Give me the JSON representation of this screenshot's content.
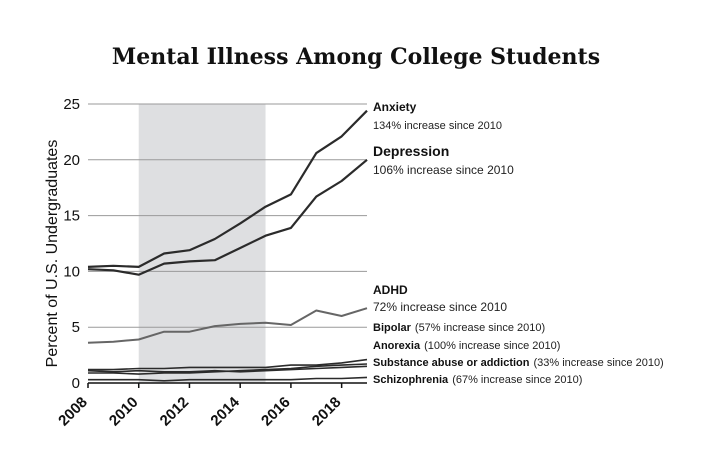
{
  "chart_data": {
    "type": "line",
    "title": "Mental Illness Among College Students",
    "ylabel": "Percent of U.S. Undergraduates",
    "xlim": [
      2008,
      2019
    ],
    "ylim": [
      0,
      25
    ],
    "yticks": [
      "0",
      "5",
      "10",
      "15",
      "20",
      "25"
    ],
    "xticks": [
      "2008",
      "2010",
      "2012",
      "2014",
      "2016",
      "2018"
    ],
    "shaded_range": [
      2010,
      2015
    ],
    "colors": {
      "line": "#2b2b2b",
      "line_light": "#666666",
      "shade": "#dedfe1"
    },
    "series": [
      {
        "name": "Anxiety",
        "annotation": "134% increase since 2010",
        "x": [
          2008,
          2009,
          2010,
          2011,
          2012,
          2013,
          2014,
          2015,
          2016,
          2017,
          2018,
          2019
        ],
        "values": [
          10.4,
          10.5,
          10.4,
          11.6,
          11.9,
          12.9,
          14.3,
          15.8,
          16.9,
          20.6,
          22.1,
          24.4
        ]
      },
      {
        "name": "Depression",
        "annotation": "106% increase since 2010",
        "x": [
          2008,
          2009,
          2010,
          2011,
          2012,
          2013,
          2014,
          2015,
          2016,
          2017,
          2018,
          2019
        ],
        "values": [
          10.2,
          10.1,
          9.7,
          10.7,
          10.9,
          11.0,
          12.1,
          13.2,
          13.9,
          16.7,
          18.1,
          20.0
        ]
      },
      {
        "name": "ADHD",
        "annotation": "72% increase since 2010",
        "x": [
          2008,
          2009,
          2010,
          2011,
          2012,
          2013,
          2014,
          2015,
          2016,
          2017,
          2018,
          2019
        ],
        "values": [
          3.6,
          3.7,
          3.9,
          4.6,
          4.6,
          5.1,
          5.3,
          5.4,
          5.2,
          6.5,
          6.0,
          6.7
        ]
      },
      {
        "name": "Bipolar",
        "annotation": "(57% increase since 2010)",
        "x": [
          2008,
          2009,
          2010,
          2011,
          2012,
          2013,
          2014,
          2015,
          2016,
          2017,
          2018,
          2019
        ],
        "values": [
          1.2,
          1.2,
          1.3,
          1.3,
          1.4,
          1.4,
          1.4,
          1.4,
          1.6,
          1.6,
          1.8,
          2.1
        ]
      },
      {
        "name": "Anorexia",
        "annotation": "(100% increase since 2010)",
        "x": [
          2008,
          2009,
          2010,
          2011,
          2012,
          2013,
          2014,
          2015,
          2016,
          2017,
          2018,
          2019
        ],
        "values": [
          0.9,
          0.9,
          0.8,
          0.9,
          0.9,
          1.0,
          1.1,
          1.2,
          1.3,
          1.5,
          1.6,
          1.7
        ]
      },
      {
        "name": "Substance abuse or addiction",
        "annotation": "(33% increase since 2010)",
        "x": [
          2008,
          2009,
          2010,
          2011,
          2012,
          2013,
          2014,
          2015,
          2016,
          2017,
          2018,
          2019
        ],
        "values": [
          1.1,
          1.0,
          1.1,
          1.0,
          1.0,
          1.1,
          1.0,
          1.1,
          1.2,
          1.3,
          1.4,
          1.5
        ]
      },
      {
        "name": "Schizophrenia",
        "annotation": "(67% increase since 2010)",
        "x": [
          2008,
          2009,
          2010,
          2011,
          2012,
          2013,
          2014,
          2015,
          2016,
          2017,
          2018,
          2019
        ],
        "values": [
          0.3,
          0.3,
          0.3,
          0.2,
          0.3,
          0.3,
          0.3,
          0.3,
          0.3,
          0.4,
          0.4,
          0.5
        ]
      }
    ]
  }
}
